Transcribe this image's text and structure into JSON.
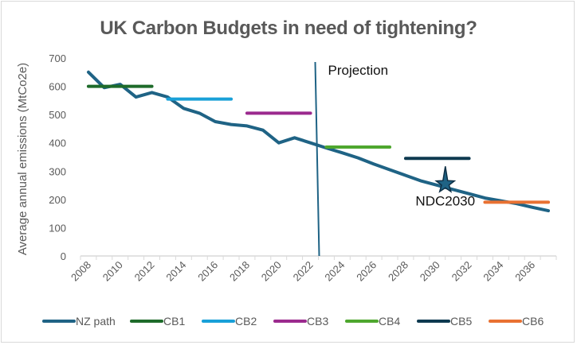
{
  "chart_data": {
    "type": "line",
    "title": "UK Carbon Budgets  in need of tightening?",
    "xlabel": "",
    "ylabel": "Average annual emissions (MtCo2e)",
    "ylim": [
      0,
      700
    ],
    "yticks": [
      0,
      100,
      200,
      300,
      400,
      500,
      600,
      700
    ],
    "x": [
      2008,
      2009,
      2010,
      2011,
      2012,
      2013,
      2014,
      2015,
      2016,
      2017,
      2018,
      2019,
      2020,
      2021,
      2022,
      2023,
      2024,
      2025,
      2026,
      2027,
      2028,
      2029,
      2030,
      2031,
      2032,
      2033,
      2034,
      2035,
      2036,
      2037
    ],
    "xtick_labels": [
      "2008",
      "2010",
      "2012",
      "2014",
      "2016",
      "2018",
      "2020",
      "2022",
      "2024",
      "2026",
      "2028",
      "2030",
      "2032",
      "2034",
      "2036"
    ],
    "grid": false,
    "legend_position": "bottom",
    "series": [
      {
        "name": "NZ path",
        "color": "#1f6385",
        "values": [
          650,
          595,
          607,
          562,
          578,
          562,
          522,
          505,
          475,
          465,
          460,
          445,
          400,
          418,
          400,
          382,
          365,
          347,
          325,
          305,
          285,
          265,
          250,
          235,
          220,
          205,
          195,
          185,
          172,
          160
        ]
      },
      {
        "name": "CB1",
        "color": "#1e6b2a",
        "start": 2008,
        "end": 2012,
        "value": 600
      },
      {
        "name": "CB2",
        "color": "#19a0d8",
        "start": 2013,
        "end": 2017,
        "value": 555
      },
      {
        "name": "CB3",
        "color": "#9b2a8e",
        "start": 2018,
        "end": 2022,
        "value": 505
      },
      {
        "name": "CB4",
        "color": "#4ea72e",
        "start": 2023,
        "end": 2027,
        "value": 385
      },
      {
        "name": "CB5",
        "color": "#0e3a50",
        "start": 2028,
        "end": 2032,
        "value": 345
      },
      {
        "name": "CB6",
        "color": "#e97132",
        "start": 2033,
        "end": 2037,
        "value": 190
      }
    ],
    "annotations": [
      {
        "type": "vertical-line",
        "label": "Projection",
        "x": 2022.5,
        "color": "#1f6385"
      },
      {
        "type": "star-marker",
        "label": "NDC2030",
        "x": 2030,
        "y": 255,
        "color": "#1f6385"
      }
    ]
  }
}
